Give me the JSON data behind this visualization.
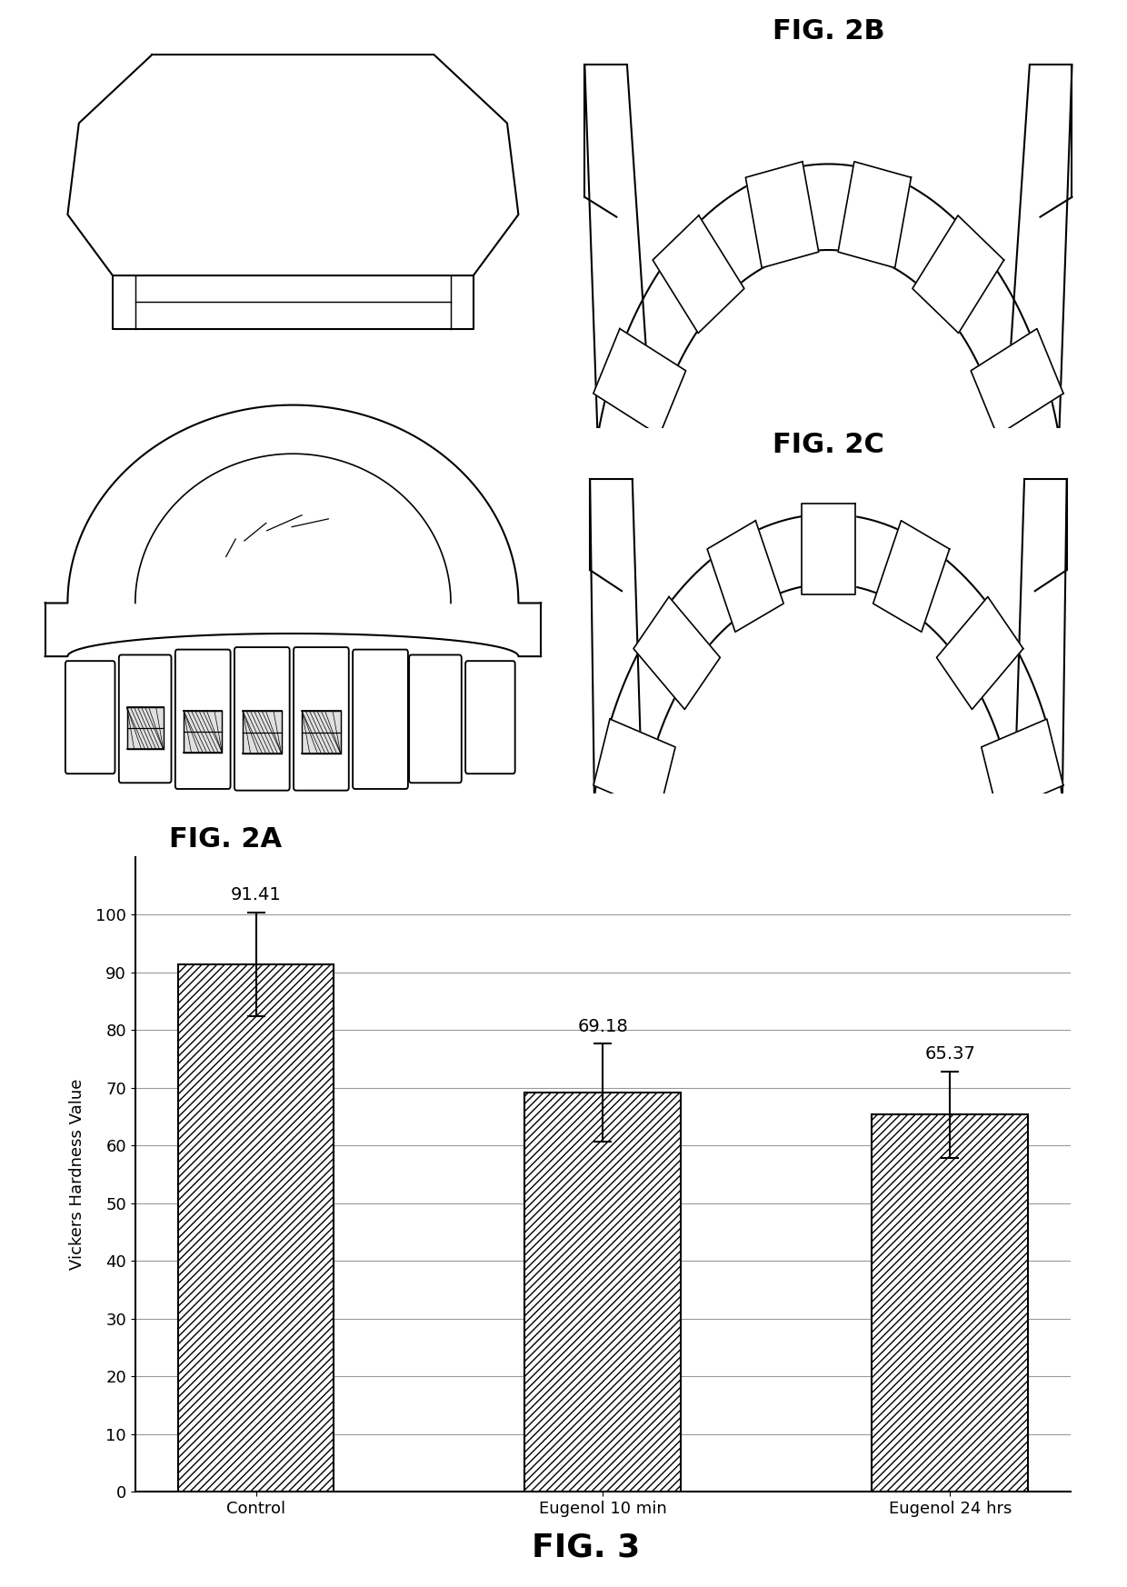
{
  "categories": [
    "Control",
    "Eugenol 10 min",
    "Eugenol 24 hrs"
  ],
  "values": [
    91.41,
    69.18,
    65.37
  ],
  "errors": [
    9.0,
    8.5,
    7.5
  ],
  "bar_color": "#ffffff",
  "bar_edgecolor": "#000000",
  "hatch_pattern": "////",
  "ylabel": "Vickers Hardness Value",
  "ylim": [
    0,
    110
  ],
  "yticks": [
    0,
    10,
    20,
    30,
    40,
    50,
    60,
    70,
    80,
    90,
    100
  ],
  "fig3_label": "FIG. 3",
  "fig2a_label": "FIG. 2A",
  "fig2b_label": "FIG. 2B",
  "fig2c_label": "FIG. 2C",
  "background_color": "#ffffff",
  "bar_width": 0.45,
  "annotation_fontsize": 14,
  "tick_fontsize": 13,
  "fig_label_fontsize": 22,
  "ylabel_fontsize": 13
}
